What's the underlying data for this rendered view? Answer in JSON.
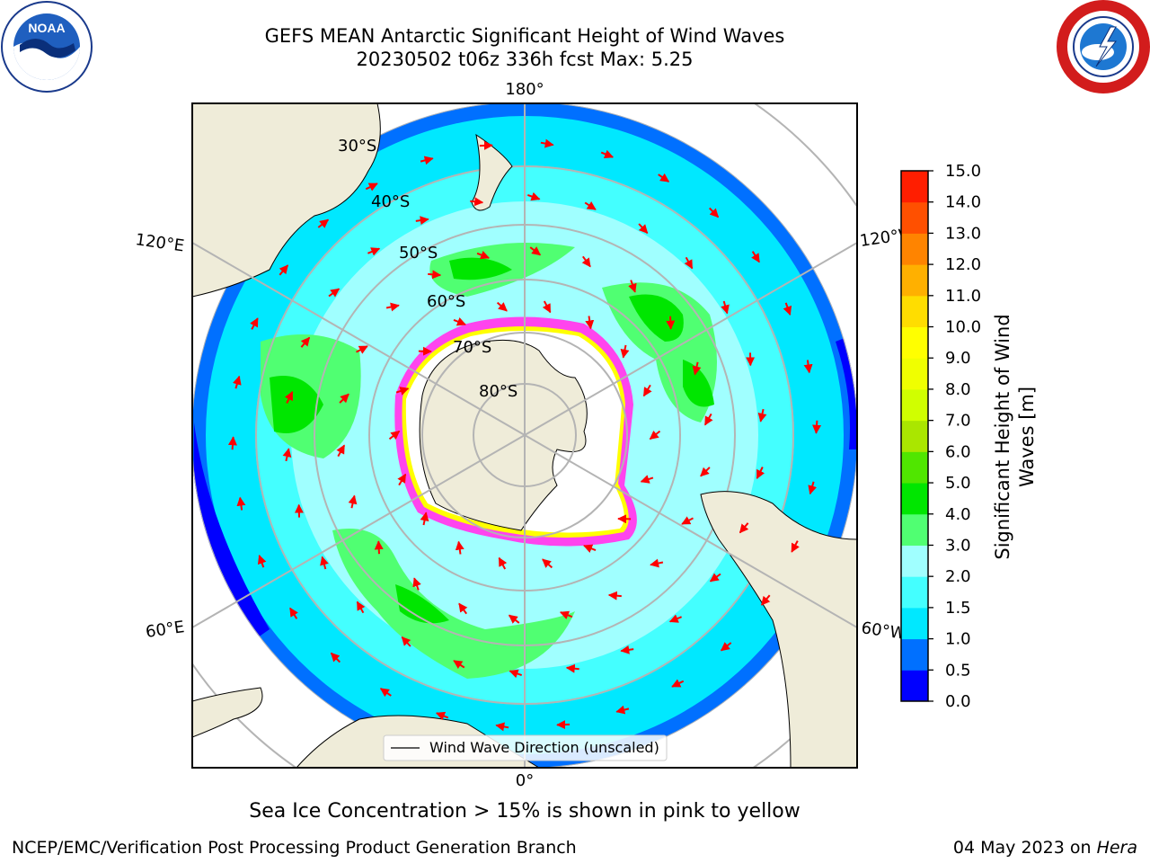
{
  "title_line1": "GEFS MEAN Antarctic Significant Height of Wind Waves",
  "title_line2": "20230502 t06z 336h fcst   Max: 5.25",
  "logos": {
    "left": "noaa-logo",
    "left_text": "NOAA",
    "right": "national-weather-service-logo"
  },
  "map": {
    "projection": "south-polar-stereographic",
    "lon_labels": {
      "top": "180°",
      "bottom": "0°",
      "upper_left": "120°E",
      "upper_right": "120°W",
      "lower_left": "60°E",
      "lower_right": "60°W"
    },
    "lat_labels": [
      "30°S",
      "40°S",
      "50°S",
      "60°S",
      "70°S",
      "80°S"
    ],
    "legend": "Wind Wave Direction (unscaled)",
    "colors": {
      "land": "#efecd9",
      "ice_sheet": "#ffffff",
      "sea_ice": "#ff44ee",
      "grid": "#b4b4b4",
      "arrow": "#ff0000"
    }
  },
  "colorbar": {
    "label_line1": "Significant Height of Wind",
    "label_line2": "Waves [m]",
    "ticks": [
      "0.0",
      "0.5",
      "1.0",
      "1.5",
      "2.0",
      "3.0",
      "4.0",
      "5.0",
      "6.0",
      "7.0",
      "8.0",
      "9.0",
      "10.0",
      "11.0",
      "12.0",
      "13.0",
      "14.0",
      "15.0"
    ],
    "colors": [
      "#0000ff",
      "#0070ff",
      "#00e8ff",
      "#44ffff",
      "#a0ffff",
      "#50ff72",
      "#00e600",
      "#50e600",
      "#aae600",
      "#d0ff00",
      "#f0ff00",
      "#ffff00",
      "#ffdd00",
      "#ffb000",
      "#ff8400",
      "#ff5000",
      "#ff1e00"
    ]
  },
  "note": "Sea Ice Concentration > 15% is shown in pink to yellow",
  "credit": "NCEP/EMC/Verification Post Processing Product Generation Branch",
  "stamp_date": "04 May 2023 on ",
  "stamp_machine": "Hera"
}
